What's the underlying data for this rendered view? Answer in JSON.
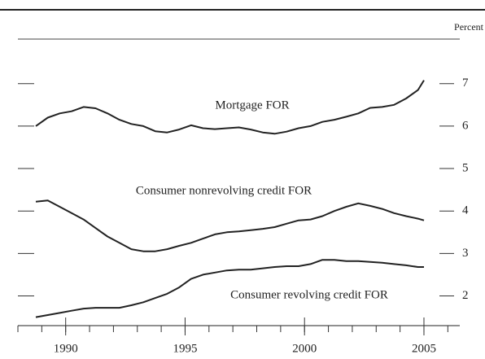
{
  "chart_data": {
    "type": "line",
    "y_axis_label": "Percent",
    "x": [
      1988.75,
      1989.25,
      1989.75,
      1990.25,
      1990.75,
      1991.25,
      1991.75,
      1992.25,
      1992.75,
      1993.25,
      1993.75,
      1994.25,
      1994.75,
      1995.25,
      1995.75,
      1996.25,
      1996.75,
      1997.25,
      1997.75,
      1998.25,
      1998.75,
      1999.25,
      1999.75,
      2000.25,
      2000.75,
      2001.25,
      2001.75,
      2002.25,
      2002.75,
      2003.25,
      2003.75,
      2004.25,
      2004.75,
      2005.0
    ],
    "series": [
      {
        "name": "Mortgage FOR",
        "color": "#222222",
        "values": [
          6.0,
          6.2,
          6.3,
          6.35,
          6.45,
          6.42,
          6.3,
          6.15,
          6.05,
          6.0,
          5.88,
          5.85,
          5.92,
          6.02,
          5.95,
          5.93,
          5.95,
          5.97,
          5.92,
          5.85,
          5.82,
          5.87,
          5.95,
          6.0,
          6.1,
          6.15,
          6.22,
          6.3,
          6.43,
          6.45,
          6.5,
          6.65,
          6.85,
          7.08
        ]
      },
      {
        "name": "Consumer nonrevolving credit FOR",
        "color": "#222222",
        "values": [
          4.22,
          4.25,
          4.1,
          3.95,
          3.8,
          3.6,
          3.4,
          3.25,
          3.1,
          3.05,
          3.05,
          3.1,
          3.18,
          3.25,
          3.35,
          3.45,
          3.5,
          3.52,
          3.55,
          3.58,
          3.62,
          3.7,
          3.78,
          3.8,
          3.88,
          4.0,
          4.1,
          4.18,
          4.12,
          4.05,
          3.95,
          3.88,
          3.82,
          3.78
        ]
      },
      {
        "name": "Consumer revolving credit FOR",
        "color": "#222222",
        "values": [
          1.5,
          1.55,
          1.6,
          1.65,
          1.7,
          1.72,
          1.72,
          1.72,
          1.78,
          1.85,
          1.95,
          2.05,
          2.2,
          2.4,
          2.5,
          2.55,
          2.6,
          2.62,
          2.62,
          2.65,
          2.68,
          2.7,
          2.7,
          2.75,
          2.85,
          2.85,
          2.82,
          2.82,
          2.8,
          2.78,
          2.75,
          2.72,
          2.68,
          2.68
        ]
      }
    ],
    "xlim": [
      1988,
      2006.5
    ],
    "xticks": [
      1990,
      1995,
      2000,
      2005
    ],
    "ylim": [
      1.3,
      8.05
    ],
    "yticks": [
      2,
      3,
      4,
      5,
      6,
      7
    ]
  }
}
